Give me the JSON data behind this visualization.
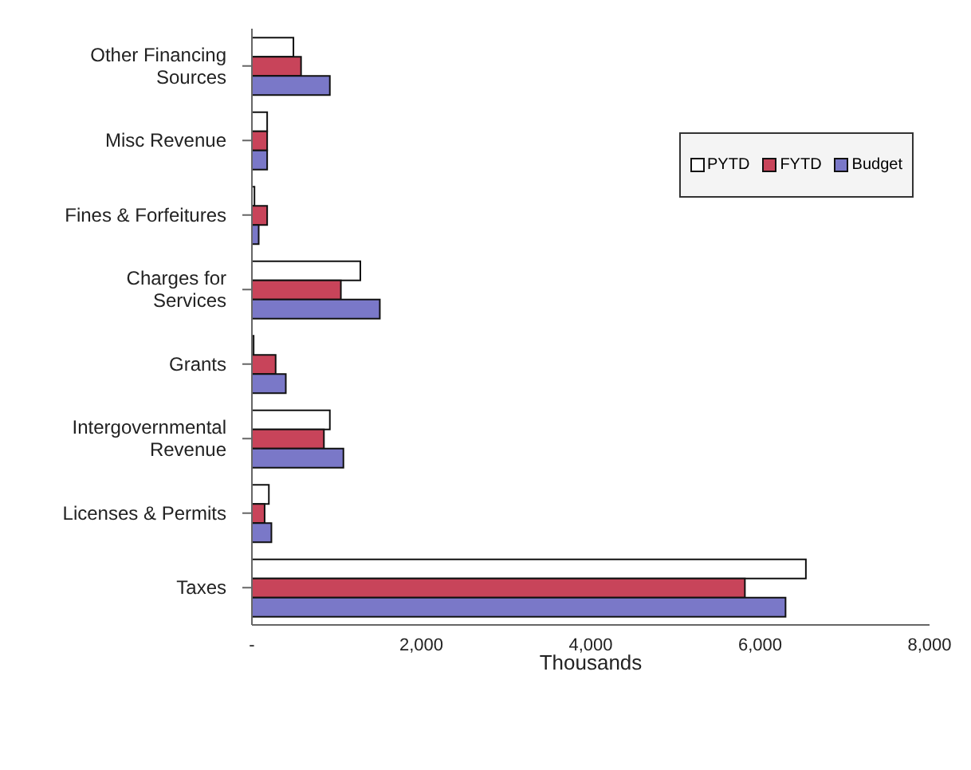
{
  "chart_data": {
    "type": "bar",
    "orientation": "horizontal",
    "xlabel": "Thousands",
    "categories": [
      "Other Financing Sources",
      "Misc Revenue",
      "Fines & Forfeitures",
      "Charges for Services",
      "Grants",
      "Intergovernmental Revenue",
      "Licenses & Permits",
      "Taxes"
    ],
    "series": [
      {
        "name": "PYTD",
        "color": "#ffffff",
        "values": [
          490,
          180,
          30,
          1280,
          20,
          920,
          200,
          6540
        ]
      },
      {
        "name": "FYTD",
        "color": "#c8445a",
        "values": [
          580,
          180,
          180,
          1050,
          280,
          850,
          150,
          5820
        ]
      },
      {
        "name": "Budget",
        "color": "#7a78c8",
        "values": [
          920,
          180,
          80,
          1510,
          400,
          1080,
          230,
          6300
        ]
      }
    ],
    "xlim": [
      0,
      8000
    ],
    "xticks": [
      {
        "value": 0,
        "label": "-"
      },
      {
        "value": 2000,
        "label": "2,000"
      },
      {
        "value": 4000,
        "label": "4,000"
      },
      {
        "value": 6000,
        "label": "6,000"
      },
      {
        "value": 8000,
        "label": "8,000"
      }
    ],
    "legend": "top right",
    "grid": false
  }
}
